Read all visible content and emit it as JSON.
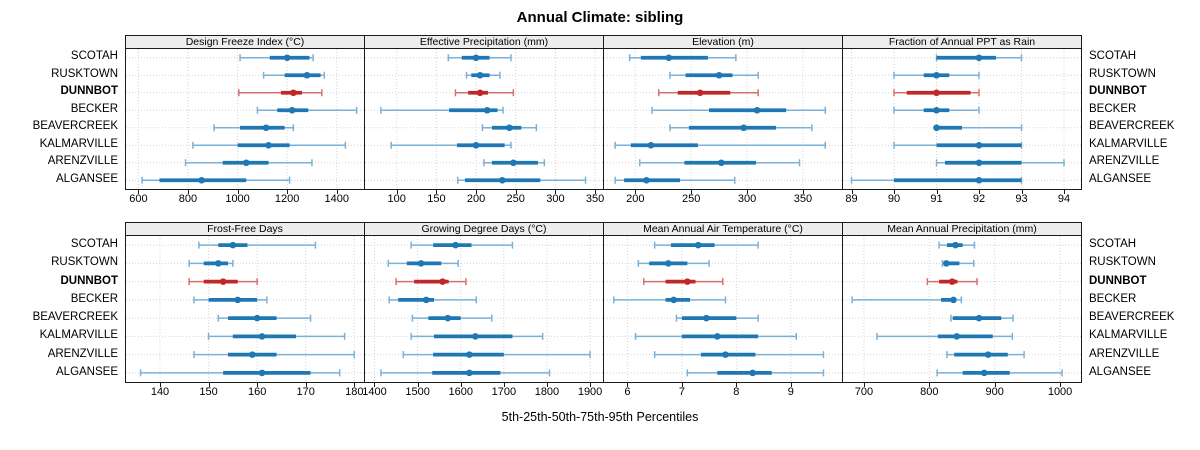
{
  "title": "Annual Climate: sibling",
  "caption": "5th-25th-50th-75th-95th Percentiles",
  "colors": {
    "series": "#1f77b4",
    "series_light": "#7bb1d6",
    "highlight": "#c02728",
    "highlight_light": "#d4716e",
    "strip_bg": "#ededed",
    "grid": "#d4d4d4",
    "border": "#1a1a1a"
  },
  "chart_data": {
    "type": "dot-interval",
    "percentiles": [
      5,
      25,
      50,
      75,
      95
    ],
    "highlight_site": "DUNNBOT",
    "sites": [
      "SCOTAH",
      "RUSKTOWN",
      "DUNNBOT",
      "BECKER",
      "BEAVERCREEK",
      "KALMARVILLE",
      "ARENZVILLE",
      "ALGANSEE"
    ],
    "panels": [
      {
        "title": "Design Freeze Index (°C)",
        "xlim": [
          550,
          1510
        ],
        "ticks": [
          600,
          800,
          1000,
          1200,
          1400
        ],
        "values": {
          "SCOTAH": [
            1010,
            1130,
            1200,
            1290,
            1305
          ],
          "RUSKTOWN": [
            1105,
            1190,
            1280,
            1335,
            1350
          ],
          "DUNNBOT": [
            1005,
            1175,
            1225,
            1260,
            1340
          ],
          "BECKER": [
            1080,
            1160,
            1220,
            1285,
            1480
          ],
          "BEAVERCREEK": [
            905,
            1010,
            1115,
            1190,
            1225
          ],
          "KALMARVILLE": [
            820,
            1000,
            1125,
            1210,
            1435
          ],
          "ARENZVILLE": [
            790,
            940,
            1035,
            1125,
            1300
          ],
          "ALGANSEE": [
            615,
            685,
            855,
            1035,
            1210
          ]
        }
      },
      {
        "title": "Effective Precipitation (mm)",
        "xlim": [
          60,
          360
        ],
        "ticks": [
          100,
          150,
          200,
          250,
          300,
          350
        ],
        "values": {
          "SCOTAH": [
            165,
            182,
            200,
            217,
            244
          ],
          "RUSKTOWN": [
            188,
            194,
            205,
            217,
            230
          ],
          "DUNNBOT": [
            174,
            190,
            205,
            215,
            247
          ],
          "BECKER": [
            80,
            166,
            214,
            227,
            234
          ],
          "BEAVERCREEK": [
            208,
            220,
            242,
            257,
            276
          ],
          "KALMARVILLE": [
            93,
            176,
            200,
            236,
            244
          ],
          "ARENZVILLE": [
            210,
            220,
            247,
            278,
            286
          ],
          "ALGANSEE": [
            177,
            186,
            233,
            281,
            338
          ]
        }
      },
      {
        "title": "Elevation (m)",
        "xlim": [
          172,
          385
        ],
        "ticks": [
          200,
          250,
          300,
          350
        ],
        "values": {
          "SCOTAH": [
            195,
            205,
            230,
            265,
            290
          ],
          "RUSKTOWN": [
            231,
            245,
            275,
            287,
            310
          ],
          "DUNNBOT": [
            221,
            238,
            258,
            285,
            310
          ],
          "BECKER": [
            215,
            266,
            309,
            335,
            370
          ],
          "BEAVERCREEK": [
            231,
            248,
            297,
            326,
            358
          ],
          "KALMARVILLE": [
            182,
            196,
            214,
            256,
            370
          ],
          "ARENZVILLE": [
            204,
            244,
            277,
            308,
            347
          ],
          "ALGANSEE": [
            182,
            190,
            210,
            240,
            289
          ]
        }
      },
      {
        "title": "Fraction of Annual PPT as Rain",
        "xlim": [
          88.8,
          94.4
        ],
        "ticks": [
          89,
          90,
          91,
          92,
          93,
          94
        ],
        "values": {
          "SCOTAH": [
            91,
            91,
            92,
            92.4,
            93
          ],
          "RUSKTOWN": [
            90,
            90.7,
            91,
            91.3,
            92
          ],
          "DUNNBOT": [
            90,
            90.3,
            91,
            91.8,
            92
          ],
          "BECKER": [
            90,
            90.7,
            91,
            91.3,
            92
          ],
          "BEAVERCREEK": [
            91,
            91,
            91,
            91.6,
            93
          ],
          "KALMARVILLE": [
            90,
            91,
            92,
            93,
            93
          ],
          "ARENZVILLE": [
            91,
            91.2,
            92,
            93,
            94
          ],
          "ALGANSEE": [
            89,
            90,
            92,
            93,
            93
          ]
        }
      },
      {
        "title": "Frost-Free Days",
        "xlim": [
          133,
          182
        ],
        "ticks": [
          140,
          150,
          160,
          170,
          180
        ],
        "values": {
          "SCOTAH": [
            148,
            152,
            155,
            158,
            172
          ],
          "RUSKTOWN": [
            146,
            149,
            152,
            154,
            155
          ],
          "DUNNBOT": [
            146,
            149,
            153,
            156,
            160
          ],
          "BECKER": [
            147,
            150,
            156,
            160,
            162
          ],
          "BEAVERCREEK": [
            152,
            154,
            160,
            164,
            171
          ],
          "KALMARVILLE": [
            150,
            155,
            161,
            168,
            178
          ],
          "ARENZVILLE": [
            147,
            154,
            159,
            164,
            180
          ],
          "ALGANSEE": [
            136,
            153,
            161,
            171,
            177
          ]
        }
      },
      {
        "title": "Growing Degree Days (°C)",
        "xlim": [
          1378,
          1930
        ],
        "ticks": [
          1400,
          1500,
          1600,
          1700,
          1800,
          1900
        ],
        "values": {
          "SCOTAH": [
            1485,
            1536,
            1588,
            1625,
            1720
          ],
          "RUSKTOWN": [
            1432,
            1475,
            1508,
            1555,
            1594
          ],
          "DUNNBOT": [
            1450,
            1492,
            1558,
            1572,
            1612
          ],
          "BECKER": [
            1434,
            1455,
            1520,
            1538,
            1636
          ],
          "BEAVERCREEK": [
            1488,
            1525,
            1570,
            1600,
            1672
          ],
          "KALMARVILLE": [
            1485,
            1538,
            1634,
            1720,
            1790
          ],
          "ARENZVILLE": [
            1467,
            1536,
            1620,
            1700,
            1900
          ],
          "ALGANSEE": [
            1415,
            1534,
            1620,
            1692,
            1806
          ]
        }
      },
      {
        "title": "Mean Annual Air Temperature (°C)",
        "xlim": [
          5.57,
          9.94
        ],
        "ticks": [
          6,
          7,
          8,
          9
        ],
        "values": {
          "SCOTAH": [
            6.5,
            6.8,
            7.3,
            7.6,
            8.4
          ],
          "RUSKTOWN": [
            6.2,
            6.4,
            6.75,
            7.1,
            7.5
          ],
          "DUNNBOT": [
            6.3,
            6.7,
            7.1,
            7.25,
            7.75
          ],
          "BECKER": [
            5.75,
            6.7,
            6.85,
            7.15,
            7.8
          ],
          "BEAVERCREEK": [
            6.9,
            7.0,
            7.45,
            8.0,
            8.4
          ],
          "KALMARVILLE": [
            6.15,
            7.0,
            7.65,
            8.4,
            9.1
          ],
          "ARENZVILLE": [
            6.5,
            7.35,
            7.8,
            8.35,
            9.6
          ],
          "ALGANSEE": [
            7.1,
            7.65,
            8.3,
            8.65,
            9.6
          ]
        }
      },
      {
        "title": "Mean Annual Precipitation (mm)",
        "xlim": [
          668,
          1032
        ],
        "ticks": [
          700,
          800,
          900,
          1000
        ],
        "values": {
          "SCOTAH": [
            815,
            827,
            840,
            851,
            869
          ],
          "RUSKTOWN": [
            820,
            823,
            826,
            846,
            868
          ],
          "DUNNBOT": [
            797,
            815,
            835,
            843,
            873
          ],
          "BECKER": [
            682,
            818,
            837,
            841,
            849
          ],
          "BEAVERCREEK": [
            833,
            836,
            876,
            910,
            928
          ],
          "KALMARVILLE": [
            720,
            813,
            842,
            897,
            927
          ],
          "ARENZVILLE": [
            827,
            838,
            890,
            920,
            945
          ],
          "ALGANSEE": [
            812,
            851,
            884,
            923,
            1003
          ]
        }
      }
    ]
  }
}
